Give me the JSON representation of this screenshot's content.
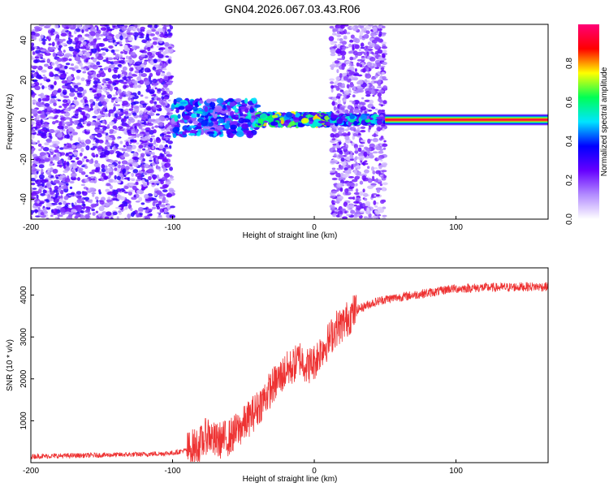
{
  "title": "GN04.2026.067.03.43.R06",
  "colors": {
    "snr_line": "#ee3333",
    "background": "#ffffff",
    "colormap": [
      "#ffffff",
      "#b38cff",
      "#6600ff",
      "#0000ff",
      "#00e5ff",
      "#00ff55",
      "#ffff00",
      "#ff0000",
      "#ff0077"
    ]
  },
  "chart_data": [
    {
      "type": "heatmap",
      "xlabel": "Height of straight line (km)",
      "ylabel": "Frequency (Hz)",
      "xlim": [
        -200,
        165
      ],
      "ylim": [
        -50,
        48
      ],
      "xticks": [
        "-200",
        "-100",
        "0",
        "100"
      ],
      "yticks": [
        "-40",
        "-20",
        "0",
        "20",
        "40"
      ],
      "colorbar": {
        "label": "Normalized spectral amplitude",
        "range": [
          0,
          1
        ],
        "ticks": [
          "0.0",
          "0.2",
          "0.4",
          "0.6",
          "0.8"
        ]
      },
      "regions": [
        {
          "x": [
            -200,
            -100
          ],
          "freq": [
            -50,
            48
          ],
          "amp": 0.3,
          "pattern": "noise"
        },
        {
          "x": [
            -100,
            -40
          ],
          "freq": [
            -8,
            10
          ],
          "amp": 0.45,
          "pattern": "spread"
        },
        {
          "x": [
            -40,
            12
          ],
          "freq": [
            -3,
            3
          ],
          "amp": 0.65,
          "pattern": "narrow"
        },
        {
          "x": [
            12,
            50
          ],
          "freq": [
            -50,
            48
          ],
          "amp": 0.25,
          "pattern": "noise"
        },
        {
          "x": [
            12,
            50
          ],
          "freq": [
            -2,
            2
          ],
          "amp": 0.5,
          "pattern": "band"
        },
        {
          "x": [
            50,
            165
          ],
          "freq": [
            -2,
            2
          ],
          "amp": 0.95,
          "pattern": "carrier"
        }
      ]
    },
    {
      "type": "line",
      "xlabel": "Height of straight line (km)",
      "ylabel": "SNR (10 * v/v)",
      "xlim": [
        -200,
        165
      ],
      "ylim": [
        0,
        4650
      ],
      "xticks": [
        "-200",
        "-100",
        "0",
        "100"
      ],
      "yticks": [
        "1000",
        "2000",
        "3000",
        "4000"
      ],
      "series": [
        {
          "x": [
            -200,
            -150,
            -120,
            -100,
            -90,
            -80,
            -75,
            -70,
            -60,
            -50,
            -40,
            -30,
            -20,
            -15,
            -10,
            -5,
            0,
            5,
            10,
            15,
            20,
            25,
            30,
            40,
            50,
            60,
            70,
            80,
            90,
            95,
            100,
            110,
            120,
            130,
            140,
            150,
            165
          ],
          "y": [
            150,
            180,
            200,
            230,
            300,
            450,
            700,
            500,
            600,
            900,
            1300,
            1800,
            2200,
            2300,
            2500,
            2300,
            2400,
            2700,
            2900,
            3200,
            3300,
            3500,
            3650,
            3800,
            3900,
            3950,
            4000,
            4050,
            4100,
            4150,
            4150,
            4170,
            4180,
            4180,
            4190,
            4200,
            4200
          ]
        }
      ]
    }
  ]
}
